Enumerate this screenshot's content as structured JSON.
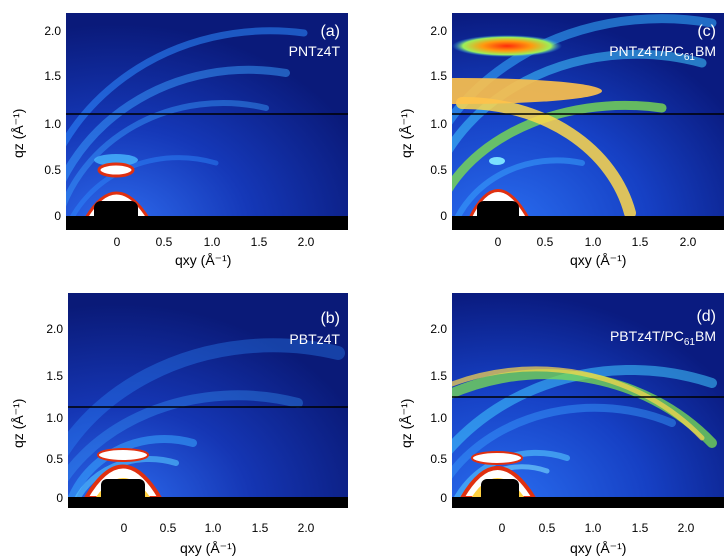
{
  "panels": [
    {
      "id": "a",
      "tag": "(a)",
      "sample": "PNTz4T",
      "ylabel": "qz (Å⁻¹)",
      "xlabel": "qxy (Å⁻¹)",
      "yticks": [
        "2.0",
        "1.5",
        "1.0",
        "0.5",
        "0"
      ],
      "xticks": [
        "0",
        "0.5",
        "1.0",
        "1.5",
        "2.0"
      ]
    },
    {
      "id": "c",
      "tag": "(c)",
      "sample": "PNTz4T/PC61BM",
      "ylabel": "qz (Å⁻¹)",
      "xlabel": "qxy (Å⁻¹)",
      "yticks": [
        "2.0",
        "1.5",
        "1.0",
        "0.5",
        "0"
      ],
      "xticks": [
        "0",
        "0.5",
        "1.0",
        "1.5",
        "2.0"
      ]
    },
    {
      "id": "b",
      "tag": "(b)",
      "sample": "PBTz4T",
      "ylabel": "qz (Å⁻¹)",
      "xlabel": "qxy (Å⁻¹)",
      "yticks": [
        "2.0",
        "1.5",
        "1.0",
        "0.5",
        "0"
      ],
      "xticks": [
        "0",
        "0.5",
        "1.0",
        "1.5",
        "2.0"
      ]
    },
    {
      "id": "d",
      "tag": "(d)",
      "sample": "PBTz4T/PC61BM",
      "ylabel": "qz (Å⁻¹)",
      "xlabel": "qxy (Å⁻¹)",
      "yticks": [
        "2.0",
        "1.5",
        "1.0",
        "0.5",
        "0"
      ],
      "xticks": [
        "0",
        "0.5",
        "1.0",
        "1.5",
        "2.0"
      ]
    }
  ]
}
